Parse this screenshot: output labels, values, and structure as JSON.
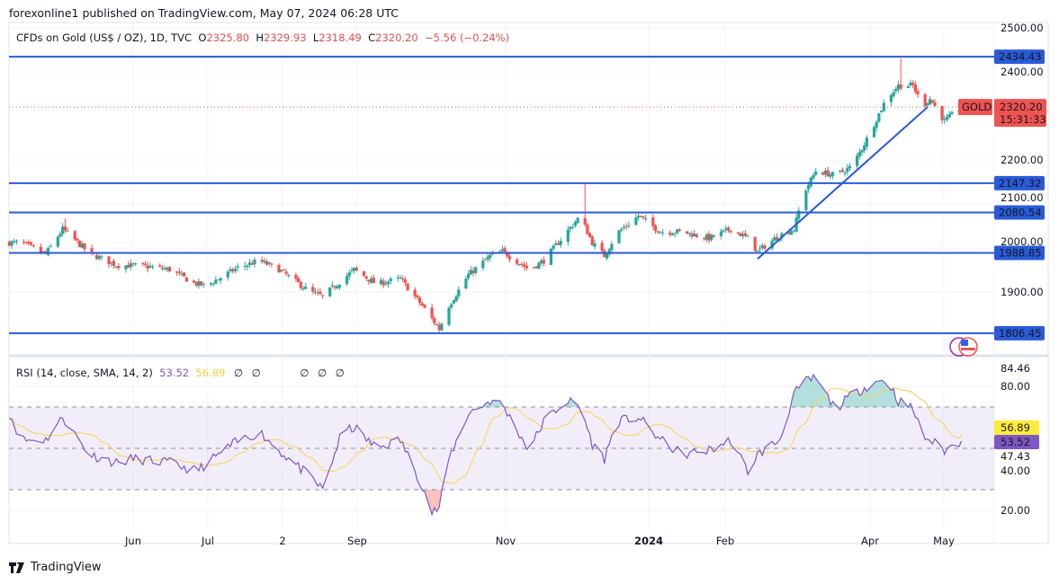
{
  "header": {
    "published": "forexonline1 published on TradingView.com, May 07, 2024 06:28 UTC"
  },
  "legend": {
    "symbol": "CFDs on Gold (US$ / OZ), 1D, TVC",
    "o_label": "O",
    "o": "2325.80",
    "h_label": "H",
    "h": "2329.93",
    "l_label": "L",
    "l": "2318.49",
    "c_label": "C",
    "c": "2320.20",
    "change": "−5.56 (−0.24%)"
  },
  "rsi_legend": {
    "title": "RSI (14, close, SMA, 14, 2)",
    "rsi": "53.52",
    "sma": "56.89",
    "empty_values": [
      "∅",
      "∅",
      "∅",
      "∅",
      "∅"
    ]
  },
  "price_label": {
    "symbol": "GOLD",
    "price": "2320.20",
    "countdown": "15:31:33"
  },
  "footer": {
    "brand": "TradingView"
  },
  "colors": {
    "up": "#26a69a",
    "down": "#ef5350",
    "level_line": "#2a5bd7",
    "rsi": "#7e57c2",
    "rsi_sma": "#f5d76e",
    "price_tag": "#ef5350"
  },
  "chart_data": [
    {
      "type": "candlestick",
      "title": "CFDs on Gold (US$ / OZ), 1D, TVC",
      "x_ticks": [
        "Jun",
        "Jul",
        "2",
        "Sep",
        "Nov",
        "2024",
        "Feb",
        "Apr",
        "May"
      ],
      "y_ticks": [
        "2500.00",
        "2400.00",
        "2200.00",
        "2100.00",
        "2000.00",
        "1900.00"
      ],
      "ylim": [
        1770,
        2535
      ],
      "grid": true,
      "horizontal_levels": [
        "2434.43",
        "2147.32",
        "2080.54",
        "1988.85",
        "1806.45"
      ],
      "trendline": [
        {
          "date": "2024-02-13",
          "price": 1975
        },
        {
          "date": "2024-04-23",
          "price": 2320
        }
      ],
      "approx_closes": [
        [
          "2023-04-11",
          2012
        ],
        [
          "2023-04-16",
          2012
        ],
        [
          "2023-04-26",
          1986
        ],
        [
          "2023-05-03",
          2043
        ],
        [
          "2023-05-14",
          1988
        ],
        [
          "2023-05-25",
          1961
        ],
        [
          "2023-06-05",
          1959
        ],
        [
          "2023-06-16",
          1951
        ],
        [
          "2023-06-26",
          1920
        ],
        [
          "2023-07-01",
          1914
        ],
        [
          "2023-07-14",
          1955
        ],
        [
          "2023-07-23",
          1971
        ],
        [
          "2023-07-31",
          1951
        ],
        [
          "2023-08-13",
          1900
        ],
        [
          "2023-08-18",
          1890
        ],
        [
          "2023-08-31",
          1951
        ],
        [
          "2023-09-09",
          1918
        ],
        [
          "2023-09-19",
          1930
        ],
        [
          "2023-09-28",
          1869
        ],
        [
          "2023-10-05",
          1816
        ],
        [
          "2023-10-09",
          1869
        ],
        [
          "2023-10-17",
          1939
        ],
        [
          "2023-10-26",
          1982
        ],
        [
          "2023-10-31",
          1992
        ],
        [
          "2023-11-11",
          1951
        ],
        [
          "2023-11-17",
          1971
        ],
        [
          "2023-11-26",
          2033
        ],
        [
          "2023-12-02",
          2073
        ],
        [
          "2023-12-07",
          2012
        ],
        [
          "2023-12-12",
          1982
        ],
        [
          "2023-12-17",
          2033
        ],
        [
          "2023-12-26",
          2073
        ],
        [
          "2024-01-04",
          2037
        ],
        [
          "2024-01-13",
          2037
        ],
        [
          "2024-01-24",
          2022
        ],
        [
          "2024-02-02",
          2043
        ],
        [
          "2024-02-09",
          2022
        ],
        [
          "2024-02-13",
          1992
        ],
        [
          "2024-02-22",
          2029
        ],
        [
          "2024-02-28",
          2043
        ],
        [
          "2024-03-03",
          2124
        ],
        [
          "2024-03-08",
          2175
        ],
        [
          "2024-03-16",
          2165
        ],
        [
          "2024-03-23",
          2186
        ],
        [
          "2024-03-29",
          2247
        ],
        [
          "2024-04-06",
          2339
        ],
        [
          "2024-04-11",
          2369
        ],
        [
          "2024-04-17",
          2369
        ],
        [
          "2024-04-21",
          2322
        ],
        [
          "2024-04-24",
          2339
        ],
        [
          "2024-04-30",
          2288
        ],
        [
          "2024-05-07",
          2320.2
        ]
      ],
      "notable_highs": [
        [
          "2023-05-04",
          2067
        ],
        [
          "2023-12-04",
          2147
        ],
        [
          "2024-04-12",
          2431
        ]
      ]
    },
    {
      "type": "line",
      "title": "RSI (14, close, SMA, 14, 2)",
      "y_ticks": [
        "84.46",
        "80.00",
        "40.00",
        "20.00"
      ],
      "value_tags": [
        "56.89",
        "53.52",
        "47.43"
      ],
      "bands": [
        70,
        50,
        30
      ],
      "ylim": [
        14,
        90
      ],
      "approx_rsi": [
        [
          "2023-04-11",
          67
        ],
        [
          "2023-04-16",
          54
        ],
        [
          "2023-04-26",
          54
        ],
        [
          "2023-05-03",
          65
        ],
        [
          "2023-05-14",
          47
        ],
        [
          "2023-05-25",
          43
        ],
        [
          "2023-06-01",
          45
        ],
        [
          "2023-06-16",
          43
        ],
        [
          "2023-06-27",
          39
        ],
        [
          "2023-07-12",
          52
        ],
        [
          "2023-07-23",
          58
        ],
        [
          "2023-07-31",
          49
        ],
        [
          "2023-08-13",
          36
        ],
        [
          "2023-08-18",
          30
        ],
        [
          "2023-08-26",
          58
        ],
        [
          "2023-08-31",
          60
        ],
        [
          "2023-09-09",
          50
        ],
        [
          "2023-09-19",
          54
        ],
        [
          "2023-09-28",
          32
        ],
        [
          "2023-10-02",
          19
        ],
        [
          "2023-10-05",
          21
        ],
        [
          "2023-10-09",
          45
        ],
        [
          "2023-10-17",
          67
        ],
        [
          "2023-10-26",
          73
        ],
        [
          "2023-10-31",
          71
        ],
        [
          "2023-11-11",
          49
        ],
        [
          "2023-11-17",
          63
        ],
        [
          "2023-11-26",
          73
        ],
        [
          "2023-12-02",
          71
        ],
        [
          "2023-12-07",
          52
        ],
        [
          "2023-12-12",
          45
        ],
        [
          "2023-12-17",
          63
        ],
        [
          "2023-12-26",
          65
        ],
        [
          "2024-01-04",
          54
        ],
        [
          "2024-01-13",
          47
        ],
        [
          "2024-01-24",
          49
        ],
        [
          "2024-02-02",
          54
        ],
        [
          "2024-02-09",
          39
        ],
        [
          "2024-02-13",
          47
        ],
        [
          "2024-02-22",
          54
        ],
        [
          "2024-02-28",
          76
        ],
        [
          "2024-03-03",
          82
        ],
        [
          "2024-03-08",
          84
        ],
        [
          "2024-03-16",
          69
        ],
        [
          "2024-03-23",
          76
        ],
        [
          "2024-03-29",
          80
        ],
        [
          "2024-04-06",
          84
        ],
        [
          "2024-04-11",
          73
        ],
        [
          "2024-04-17",
          69
        ],
        [
          "2024-04-21",
          56
        ],
        [
          "2024-04-24",
          54
        ],
        [
          "2024-04-30",
          49
        ],
        [
          "2024-05-07",
          53.52
        ]
      ],
      "series": [
        {
          "name": "RSI",
          "last": 53.52
        },
        {
          "name": "SMA",
          "last": 56.89
        }
      ]
    }
  ]
}
